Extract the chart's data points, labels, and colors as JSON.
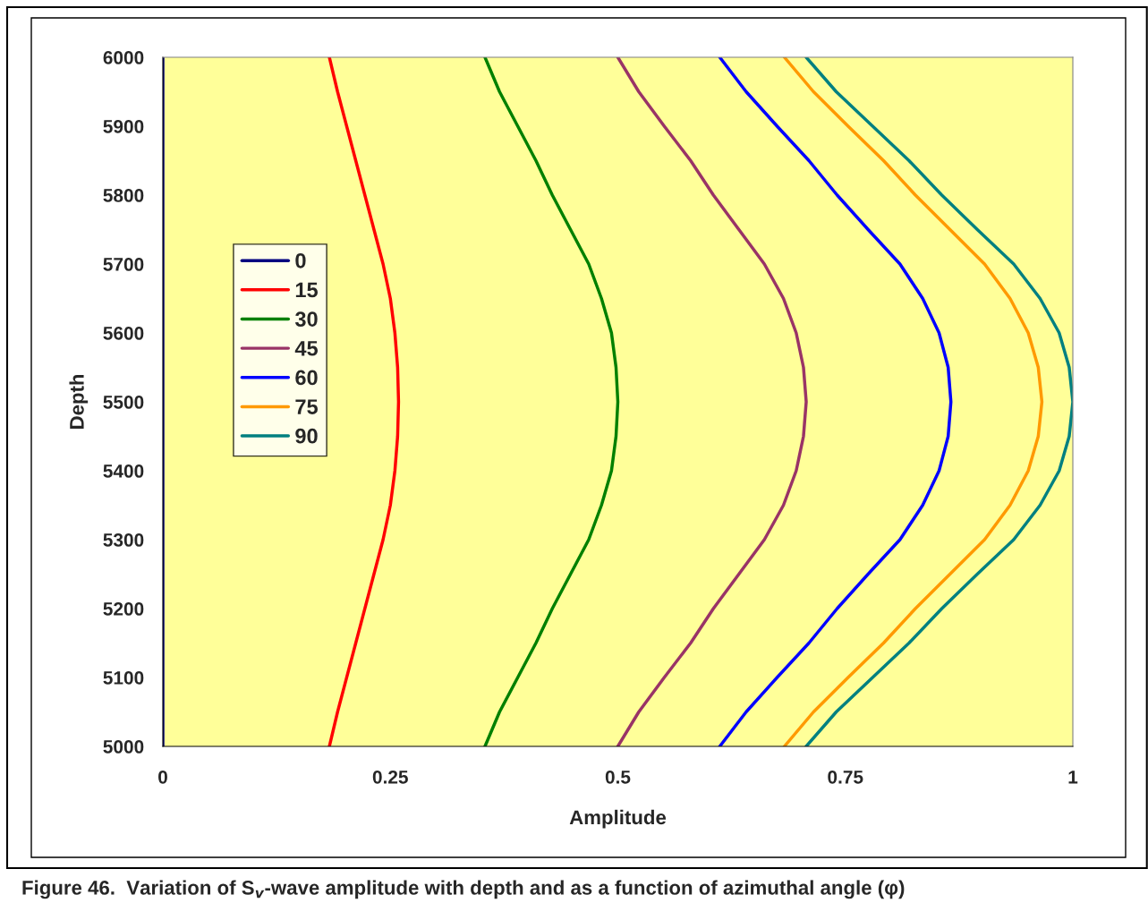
{
  "chart_data": {
    "type": "line",
    "xlabel": "Amplitude",
    "ylabel": "Depth",
    "annotations": [
      "Figure 46.  Variation of S$_{v}$-wave amplitude with depth and as a function of azimuthal angle (φ)"
    ],
    "xlim": [
      0,
      1
    ],
    "xticks": [
      0,
      0.25,
      0.5,
      0.75,
      1
    ],
    "ylim": [
      5000,
      6000
    ],
    "yticks": [
      5000,
      5100,
      5200,
      5300,
      5400,
      5500,
      5600,
      5700,
      5800,
      5900,
      6000
    ],
    "grid": false,
    "legend": "left",
    "marker": "none",
    "line_style": "solid",
    "series": [
      {
        "name": "0",
        "color": "#000080",
        "x": [
          0,
          0,
          0,
          0,
          0,
          0,
          0,
          0,
          0,
          0,
          0,
          0,
          0,
          0,
          0,
          0,
          0,
          0,
          0,
          0,
          0
        ],
        "values": [
          6000,
          5950,
          5900,
          5850,
          5800,
          5750,
          5700,
          5650,
          5600,
          5550,
          5500,
          5450,
          5400,
          5350,
          5300,
          5250,
          5200,
          5150,
          5100,
          5050,
          5000
        ]
      },
      {
        "name": "15",
        "color": "#ff0000",
        "x": [
          0.183,
          0.192,
          0.202,
          0.212,
          0.222,
          0.232,
          0.242,
          0.25,
          0.255,
          0.258,
          0.259,
          0.258,
          0.255,
          0.25,
          0.242,
          0.232,
          0.222,
          0.212,
          0.202,
          0.192,
          0.183
        ],
        "values": [
          6000,
          5950,
          5900,
          5850,
          5800,
          5750,
          5700,
          5650,
          5600,
          5550,
          5500,
          5450,
          5400,
          5350,
          5300,
          5250,
          5200,
          5150,
          5100,
          5050,
          5000
        ]
      },
      {
        "name": "30",
        "color": "#008000",
        "x": [
          0.354,
          0.37,
          0.39,
          0.41,
          0.428,
          0.448,
          0.468,
          0.482,
          0.493,
          0.498,
          0.5,
          0.498,
          0.493,
          0.482,
          0.468,
          0.448,
          0.428,
          0.41,
          0.39,
          0.37,
          0.354
        ],
        "values": [
          6000,
          5950,
          5900,
          5850,
          5800,
          5750,
          5700,
          5650,
          5600,
          5550,
          5500,
          5450,
          5400,
          5350,
          5300,
          5250,
          5200,
          5150,
          5100,
          5050,
          5000
        ]
      },
      {
        "name": "45",
        "color": "#993366",
        "x": [
          0.5,
          0.523,
          0.551,
          0.58,
          0.605,
          0.633,
          0.661,
          0.682,
          0.696,
          0.704,
          0.707,
          0.704,
          0.696,
          0.682,
          0.661,
          0.633,
          0.605,
          0.58,
          0.551,
          0.523,
          0.5
        ],
        "values": [
          6000,
          5950,
          5900,
          5850,
          5800,
          5750,
          5700,
          5650,
          5600,
          5550,
          5500,
          5450,
          5400,
          5350,
          5300,
          5250,
          5200,
          5150,
          5100,
          5050,
          5000
        ]
      },
      {
        "name": "60",
        "color": "#0000ff",
        "x": [
          0.612,
          0.641,
          0.675,
          0.71,
          0.741,
          0.775,
          0.81,
          0.835,
          0.853,
          0.863,
          0.866,
          0.863,
          0.853,
          0.835,
          0.81,
          0.775,
          0.741,
          0.71,
          0.675,
          0.641,
          0.612
        ],
        "values": [
          6000,
          5950,
          5900,
          5850,
          5800,
          5750,
          5700,
          5650,
          5600,
          5550,
          5500,
          5450,
          5400,
          5350,
          5300,
          5250,
          5200,
          5150,
          5100,
          5050,
          5000
        ]
      },
      {
        "name": "75",
        "color": "#ff9900",
        "x": [
          0.683,
          0.715,
          0.753,
          0.792,
          0.827,
          0.865,
          0.903,
          0.931,
          0.951,
          0.962,
          0.966,
          0.962,
          0.951,
          0.931,
          0.903,
          0.865,
          0.827,
          0.792,
          0.753,
          0.715,
          0.683
        ],
        "values": [
          6000,
          5950,
          5900,
          5850,
          5800,
          5750,
          5700,
          5650,
          5600,
          5550,
          5500,
          5450,
          5400,
          5350,
          5300,
          5250,
          5200,
          5150,
          5100,
          5050,
          5000
        ]
      },
      {
        "name": "90",
        "color": "#008080",
        "x": [
          0.707,
          0.74,
          0.78,
          0.82,
          0.856,
          0.895,
          0.935,
          0.964,
          0.985,
          0.996,
          1.0,
          0.996,
          0.985,
          0.964,
          0.935,
          0.895,
          0.856,
          0.82,
          0.78,
          0.74,
          0.707
        ],
        "values": [
          6000,
          5950,
          5900,
          5850,
          5800,
          5750,
          5700,
          5650,
          5600,
          5550,
          5500,
          5450,
          5400,
          5350,
          5300,
          5250,
          5200,
          5150,
          5100,
          5050,
          5000
        ]
      }
    ]
  }
}
